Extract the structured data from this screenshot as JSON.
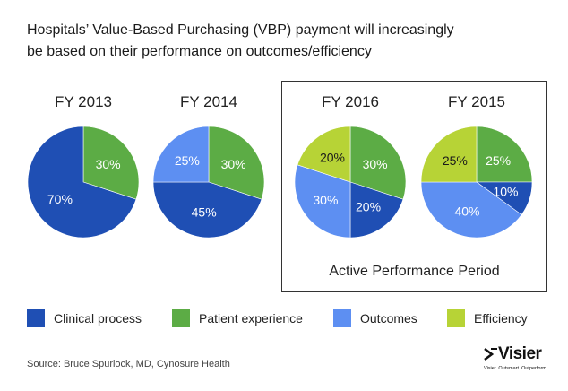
{
  "title_lines": [
    "Hospitals’ Value-Based Purchasing (VBP) payment will increasingly",
    "be based on their performance on outcomes/efficiency"
  ],
  "colors": {
    "Clinical process": "#1f4fb4",
    "Patient experience": "#5cac45",
    "Outcomes": "#5d8ff2",
    "Efficiency": "#b7d336"
  },
  "chart_data": [
    {
      "type": "pie",
      "title": "FY 2013",
      "slices": [
        {
          "label": "Patient experience",
          "value": 30
        },
        {
          "label": "Clinical process",
          "value": 70
        }
      ]
    },
    {
      "type": "pie",
      "title": "FY 2014",
      "slices": [
        {
          "label": "Patient experience",
          "value": 30
        },
        {
          "label": "Clinical process",
          "value": 45
        },
        {
          "label": "Outcomes",
          "value": 25
        }
      ]
    },
    {
      "type": "pie",
      "title": "FY 2016",
      "slices": [
        {
          "label": "Patient experience",
          "value": 30
        },
        {
          "label": "Clinical process",
          "value": 20
        },
        {
          "label": "Outcomes",
          "value": 30
        },
        {
          "label": "Efficiency",
          "value": 20
        }
      ]
    },
    {
      "type": "pie",
      "title": "FY 2015",
      "slices": [
        {
          "label": "Patient experience",
          "value": 25
        },
        {
          "label": "Clinical process",
          "value": 10
        },
        {
          "label": "Outcomes",
          "value": 40
        },
        {
          "label": "Efficiency",
          "value": 25
        }
      ]
    }
  ],
  "active_period_label": "Active Performance Period",
  "legend": [
    "Clinical process",
    "Patient experience",
    "Outcomes",
    "Efficiency"
  ],
  "source": "Source: Bruce Spurlock, MD, Cynosure Health",
  "logo": {
    "name": "Visier",
    "tagline": "Visier. Outsmart. Outperform."
  }
}
